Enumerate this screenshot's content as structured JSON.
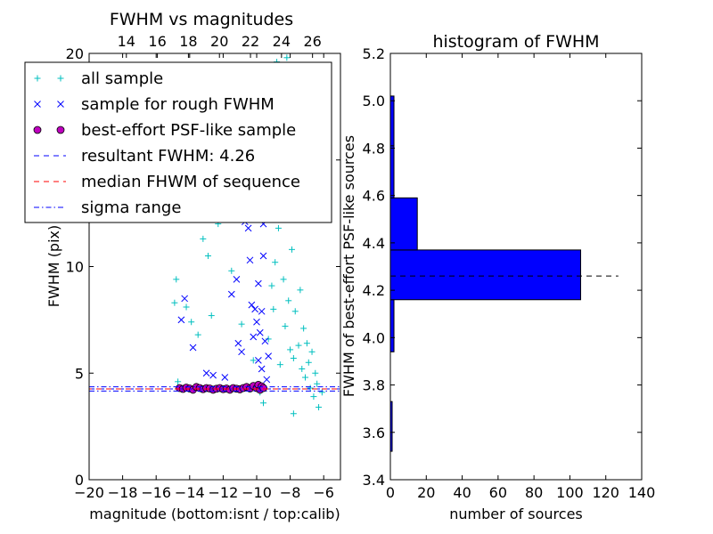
{
  "chart_data": [
    {
      "type": "scatter",
      "title": "FWHM vs magnitudes",
      "xlabel": "magnitude (bottom:isnt / top:calib)",
      "ylabel": "FWHM (pix)",
      "xlim": [
        -20,
        -5
      ],
      "ylim": [
        0,
        20
      ],
      "x_ticks": [
        "−20",
        "−18",
        "−16",
        "−14",
        "−12",
        "−10",
        "−8",
        "−6"
      ],
      "x_tick_values": [
        -20,
        -18,
        -16,
        -14,
        -12,
        -10,
        -8,
        -6
      ],
      "top_x_ticks": [
        "14",
        "16",
        "18",
        "20",
        "22",
        "24",
        "26"
      ],
      "top_x_tick_values": [
        14,
        16,
        18,
        20,
        22,
        24,
        26
      ],
      "top_xlim": [
        11.6,
        27.8
      ],
      "y_ticks": [
        "0",
        "5",
        "10",
        "15",
        "20"
      ],
      "y_tick_values": [
        0,
        5,
        10,
        15,
        20
      ],
      "grid": false,
      "legend_position": "upper-left",
      "resultant_fwhm": 4.26,
      "median_fwhm": 4.26,
      "sigma_range": [
        4.16,
        4.36
      ],
      "series": [
        {
          "name": "all sample",
          "marker": "plus",
          "color": "#00bfbf",
          "points": [
            [
              -14.9,
              8.3
            ],
            [
              -14.8,
              9.4
            ],
            [
              -14.7,
              4.6
            ],
            [
              -14.2,
              8.1
            ],
            [
              -13.9,
              7.4
            ],
            [
              -13.5,
              6.8
            ],
            [
              -13.2,
              11.3
            ],
            [
              -12.9,
              10.5
            ],
            [
              -12.7,
              7.7
            ],
            [
              -12.3,
              12.0
            ],
            [
              -11.5,
              9.8
            ],
            [
              -10.9,
              7.3
            ],
            [
              -10.2,
              5.6
            ],
            [
              -9.8,
              4.1
            ],
            [
              -9.6,
              3.6
            ],
            [
              -9.3,
              6.6
            ],
            [
              -9.1,
              9.1
            ],
            [
              -8.9,
              10.2
            ],
            [
              -8.7,
              11.8
            ],
            [
              -8.6,
              12.6
            ],
            [
              -8.4,
              9.4
            ],
            [
              -8.3,
              7.2
            ],
            [
              -8.2,
              14.1
            ],
            [
              -8.1,
              8.4
            ],
            [
              -8.0,
              6.1
            ],
            [
              -7.9,
              10.8
            ],
            [
              -7.8,
              5.7
            ],
            [
              -7.7,
              7.9
            ],
            [
              -7.6,
              13.3
            ],
            [
              -7.5,
              6.3
            ],
            [
              -7.4,
              8.9
            ],
            [
              -7.3,
              5.2
            ],
            [
              -7.2,
              7.1
            ],
            [
              -7.1,
              4.8
            ],
            [
              -7.0,
              6.4
            ],
            [
              -6.9,
              5.5
            ],
            [
              -6.8,
              4.3
            ],
            [
              -6.7,
              6.0
            ],
            [
              -6.6,
              3.9
            ],
            [
              -6.5,
              5.0
            ],
            [
              -6.4,
              4.5
            ],
            [
              -6.3,
              3.4
            ],
            [
              -6.1,
              4.1
            ],
            [
              -7.8,
              3.1
            ],
            [
              -8.6,
              5.4
            ],
            [
              -9.0,
              8.0
            ],
            [
              -8.8,
              19.6
            ],
            [
              -8.2,
              19.8
            ],
            [
              -7.6,
              16.5
            ],
            [
              -7.3,
              17.6
            ],
            [
              -8.5,
              16.0
            ],
            [
              -9.4,
              13.0
            ],
            [
              -9.6,
              15.2
            ]
          ]
        },
        {
          "name": "sample for rough FWHM",
          "marker": "x",
          "color": "#0000ff",
          "points": [
            [
              -14.5,
              7.5
            ],
            [
              -14.3,
              8.5
            ],
            [
              -13.8,
              6.2
            ],
            [
              -13.0,
              5.0
            ],
            [
              -12.6,
              4.9
            ],
            [
              -11.9,
              4.8
            ],
            [
              -11.5,
              8.7
            ],
            [
              -11.2,
              9.4
            ],
            [
              -11.1,
              6.4
            ],
            [
              -10.9,
              6.0
            ],
            [
              -10.7,
              12.1
            ],
            [
              -10.5,
              11.8
            ],
            [
              -10.4,
              10.3
            ],
            [
              -10.3,
              8.2
            ],
            [
              -10.2,
              6.7
            ],
            [
              -10.1,
              8.0
            ],
            [
              -10.0,
              7.4
            ],
            [
              -9.9,
              9.2
            ],
            [
              -9.9,
              5.6
            ],
            [
              -9.8,
              6.9
            ],
            [
              -9.7,
              5.2
            ],
            [
              -9.7,
              7.9
            ],
            [
              -9.6,
              10.5
            ],
            [
              -9.5,
              6.5
            ],
            [
              -9.4,
              4.7
            ],
            [
              -9.3,
              5.8
            ],
            [
              -9.8,
              13.0
            ],
            [
              -9.6,
              12.0
            ]
          ]
        },
        {
          "name": "best-effort PSF-like sample",
          "marker": "circle",
          "color": "#bf00bf",
          "points": [
            [
              -14.6,
              4.3
            ],
            [
              -14.4,
              4.26
            ],
            [
              -14.2,
              4.32
            ],
            [
              -14.0,
              4.28
            ],
            [
              -13.8,
              4.22
            ],
            [
              -13.6,
              4.35
            ],
            [
              -13.4,
              4.3
            ],
            [
              -13.2,
              4.25
            ],
            [
              -13.0,
              4.3
            ],
            [
              -12.8,
              4.28
            ],
            [
              -12.6,
              4.22
            ],
            [
              -12.4,
              4.27
            ],
            [
              -12.2,
              4.3
            ],
            [
              -12.0,
              4.25
            ],
            [
              -11.8,
              4.28
            ],
            [
              -11.6,
              4.22
            ],
            [
              -11.4,
              4.3
            ],
            [
              -11.2,
              4.27
            ],
            [
              -11.0,
              4.24
            ],
            [
              -10.8,
              4.3
            ],
            [
              -10.6,
              4.35
            ],
            [
              -10.4,
              4.28
            ],
            [
              -10.2,
              4.4
            ],
            [
              -10.0,
              4.3
            ],
            [
              -9.9,
              4.45
            ],
            [
              -9.8,
              4.22
            ],
            [
              -9.7,
              4.38
            ],
            [
              -9.6,
              4.3
            ]
          ]
        },
        {
          "name": "resultant FWHM: 4.26",
          "style": "dashed",
          "color": "#0000ff",
          "y": 4.26
        },
        {
          "name": "median FHWM of sequence",
          "style": "dashed",
          "color": "#ff0000",
          "y": 4.26
        },
        {
          "name": "sigma range",
          "style": "dashdot",
          "color": "#0000ff",
          "y": [
            4.16,
            4.36
          ]
        }
      ]
    },
    {
      "type": "bar",
      "orientation": "horizontal",
      "title": "histogram of FWHM",
      "xlabel": "number of sources",
      "ylabel": "FWHM of best-effort PSF-like sources",
      "xlim": [
        0,
        140
      ],
      "ylim": [
        3.4,
        5.2
      ],
      "x_ticks": [
        "0",
        "20",
        "40",
        "60",
        "80",
        "100",
        "120",
        "140"
      ],
      "x_tick_values": [
        0,
        20,
        40,
        60,
        80,
        100,
        120,
        140
      ],
      "y_ticks": [
        "3.4",
        "3.6",
        "3.8",
        "4.0",
        "4.2",
        "4.4",
        "4.6",
        "4.8",
        "5.0",
        "5.2"
      ],
      "y_tick_values": [
        3.4,
        3.6,
        3.8,
        4.0,
        4.2,
        4.4,
        4.6,
        4.8,
        5.0,
        5.2
      ],
      "grid": false,
      "bar_color": "#0000ff",
      "bins": [
        {
          "y0": 3.52,
          "y1": 3.73,
          "count": 1
        },
        {
          "y0": 3.94,
          "y1": 4.16,
          "count": 2
        },
        {
          "y0": 4.16,
          "y1": 4.37,
          "count": 106
        },
        {
          "y0": 4.37,
          "y1": 4.59,
          "count": 15
        },
        {
          "y0": 4.59,
          "y1": 4.81,
          "count": 2
        },
        {
          "y0": 4.81,
          "y1": 5.02,
          "count": 2
        }
      ],
      "reference_line": {
        "style": "dashed",
        "color": "#000000",
        "y": 4.26,
        "x_range": [
          0,
          127
        ]
      }
    }
  ]
}
